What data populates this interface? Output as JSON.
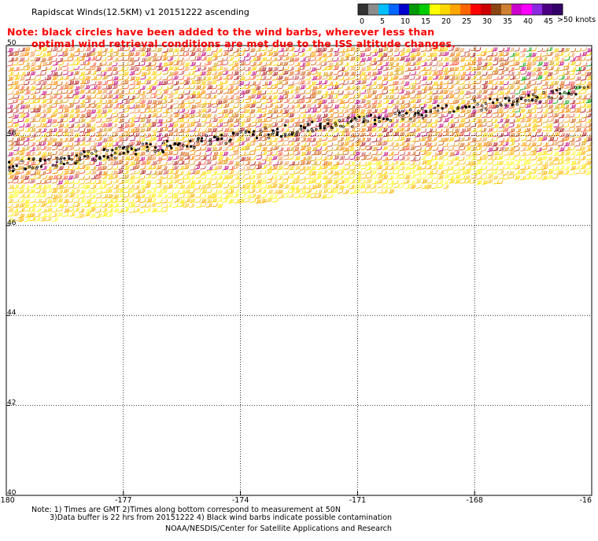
{
  "title": "Rapidscat Winds(12.5KM) v1 20151222 ascending",
  "notice": {
    "line1": "Note: black circles have been added to the wind barbs, wherever less than",
    "line2": "optimal wind retrieval conditions are met due to the ISS altitude changes."
  },
  "legend": {
    "units": ">50 knots",
    "tick_labels": [
      "0",
      "5",
      "10",
      "15",
      "20",
      "25",
      "30",
      "35",
      "40",
      "45"
    ],
    "colors": [
      "#333333",
      "#8c8c8c",
      "#00bfff",
      "#0066ff",
      "#0000cc",
      "#009900",
      "#00cc00",
      "#ffff00",
      "#ffd700",
      "#ffa500",
      "#ff6600",
      "#ff0000",
      "#cc0000",
      "#8b4513",
      "#cd7f32",
      "#cc00cc",
      "#ff00ff",
      "#8a2be2",
      "#4b0082",
      "#330066"
    ]
  },
  "axes": {
    "lon_labels": [
      "-180",
      "-177",
      "-174",
      "-171",
      "-168",
      "-16"
    ],
    "lat_labels": [
      "50",
      "48",
      "46",
      "44",
      "42",
      "40"
    ],
    "lon_min": -180,
    "lon_max": -165,
    "lat_min": 40,
    "lat_max": 50
  },
  "swath": {
    "west_top_lat": 49.9,
    "west_bottom_lat": 46.0,
    "east_top_lat": 49.9,
    "east_bottom_lat": 47.1
  },
  "contamination_line": {
    "west_lat": 47.3,
    "east_lat": 49.0
  },
  "footer": {
    "line1": "Note: 1) Times are GMT 2)Times along bottom correspond to measurement at 50N",
    "line2": "3)Data buffer is 22 hrs from 20151222 4) Black wind barbs indicate possible contamination",
    "line3": "NOAA/NESDIS/Center for Satellite Applications and Research"
  }
}
